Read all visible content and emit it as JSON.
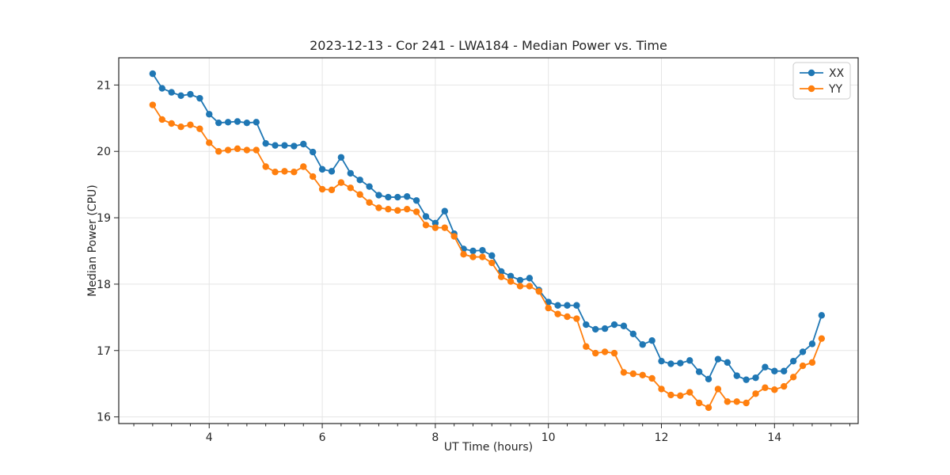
{
  "chart_data": {
    "type": "line",
    "title": "2023-12-13 - Cor 241 - LWA184 - Median Power vs. Time",
    "xlabel": "UT Time (hours)",
    "ylabel": "Median Power (CPU)",
    "xlim": [
      2.4,
      15.48
    ],
    "ylim": [
      15.9,
      21.41
    ],
    "xticks": [
      4,
      6,
      8,
      10,
      12,
      14
    ],
    "yticks": [
      16,
      17,
      18,
      19,
      20,
      21
    ],
    "x_minor_step_hours": 0.33333,
    "grid": true,
    "legend_position": "upper right",
    "x_start": 3.0,
    "x_step": 0.16667,
    "background_color": "#ffffff",
    "grid_color": "#e5e5e5",
    "spine_color": "#262626",
    "series": [
      {
        "name": "XX",
        "color": "#1f77b4",
        "values": [
          21.17,
          20.95,
          20.89,
          20.84,
          20.86,
          20.8,
          20.56,
          20.43,
          20.44,
          20.45,
          20.43,
          20.44,
          20.12,
          20.09,
          20.09,
          20.08,
          20.11,
          19.99,
          19.73,
          19.7,
          19.91,
          19.67,
          19.57,
          19.47,
          19.34,
          19.31,
          19.31,
          19.32,
          19.26,
          19.02,
          18.92,
          19.1,
          18.76,
          18.53,
          18.5,
          18.51,
          18.43,
          18.19,
          18.12,
          18.06,
          18.09,
          17.91,
          17.73,
          17.68,
          17.68,
          17.68,
          17.39,
          17.32,
          17.33,
          17.39,
          17.37,
          17.25,
          17.09,
          17.15,
          16.84,
          16.8,
          16.81,
          16.85,
          16.68,
          16.57,
          16.87,
          16.82,
          16.62,
          16.56,
          16.59,
          16.75,
          16.69,
          16.69,
          16.84,
          16.98,
          17.1,
          17.53
        ]
      },
      {
        "name": "YY",
        "color": "#ff7f0e",
        "values": [
          20.7,
          20.48,
          20.42,
          20.37,
          20.4,
          20.34,
          20.13,
          20.0,
          20.02,
          20.04,
          20.02,
          20.02,
          19.77,
          19.69,
          19.7,
          19.69,
          19.77,
          19.62,
          19.43,
          19.42,
          19.53,
          19.45,
          19.35,
          19.23,
          19.15,
          19.13,
          19.11,
          19.13,
          19.09,
          18.89,
          18.85,
          18.85,
          18.72,
          18.45,
          18.41,
          18.41,
          18.32,
          18.11,
          18.04,
          17.97,
          17.97,
          17.89,
          17.64,
          17.55,
          17.51,
          17.48,
          17.06,
          16.96,
          16.98,
          16.96,
          16.67,
          16.65,
          16.63,
          16.58,
          16.42,
          16.33,
          16.32,
          16.37,
          16.21,
          16.14,
          16.42,
          16.23,
          16.23,
          16.21,
          16.35,
          16.44,
          16.41,
          16.46,
          16.6,
          16.77,
          16.82,
          17.18
        ]
      }
    ]
  }
}
